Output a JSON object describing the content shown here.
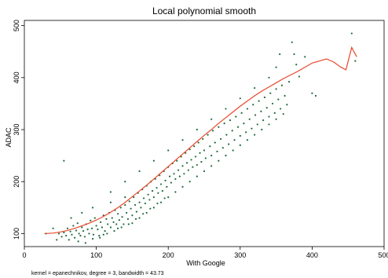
{
  "chart_data": {
    "type": "scatter",
    "title": "Local polynomial smooth",
    "xlabel": "With Google",
    "ylabel": "ADAC",
    "note": "kernel = epanechnikov, degree = 3, bandwidth = 43.73",
    "xlim": [
      0,
      500
    ],
    "ylim": [
      75,
      510
    ],
    "xticks": [
      0,
      100,
      200,
      300,
      400,
      500
    ],
    "yticks": [
      100,
      200,
      300,
      400,
      500
    ],
    "xtick_labels": [
      "0",
      "100",
      "200",
      "300",
      "400",
      "500"
    ],
    "ytick_labels": [
      "100",
      "200",
      "300",
      "400",
      "500"
    ],
    "grid": false,
    "series": [
      {
        "kind": "scatter",
        "color": "#1f6b3a",
        "points": [
          [
            48,
            100
          ],
          [
            52,
            94
          ],
          [
            55,
            102
          ],
          [
            58,
            96
          ],
          [
            60,
            110
          ],
          [
            62,
            88
          ],
          [
            64,
            104
          ],
          [
            66,
            98
          ],
          [
            68,
            115
          ],
          [
            70,
            92
          ],
          [
            72,
            106
          ],
          [
            74,
            120
          ],
          [
            76,
            100
          ],
          [
            78,
            96
          ],
          [
            80,
            112
          ],
          [
            82,
            105
          ],
          [
            84,
            94
          ],
          [
            86,
            118
          ],
          [
            88,
            108
          ],
          [
            90,
            100
          ],
          [
            92,
            125
          ],
          [
            94,
            110
          ],
          [
            96,
            98
          ],
          [
            98,
            130
          ],
          [
            100,
            115
          ],
          [
            102,
            108
          ],
          [
            104,
            96
          ],
          [
            106,
            122
          ],
          [
            108,
            112
          ],
          [
            110,
            135
          ],
          [
            112,
            105
          ],
          [
            114,
            128
          ],
          [
            116,
            118
          ],
          [
            118,
            140
          ],
          [
            120,
            112
          ],
          [
            122,
            130
          ],
          [
            124,
            122
          ],
          [
            126,
            145
          ],
          [
            128,
            118
          ],
          [
            130,
            138
          ],
          [
            132,
            126
          ],
          [
            134,
            150
          ],
          [
            136,
            132
          ],
          [
            138,
            118
          ],
          [
            140,
            155
          ],
          [
            142,
            140
          ],
          [
            144,
            128
          ],
          [
            146,
            162
          ],
          [
            148,
            148
          ],
          [
            150,
            135
          ],
          [
            152,
            170
          ],
          [
            154,
            155
          ],
          [
            156,
            142
          ],
          [
            158,
            178
          ],
          [
            160,
            160
          ],
          [
            162,
            150
          ],
          [
            164,
            185
          ],
          [
            166,
            168
          ],
          [
            168,
            158
          ],
          [
            170,
            192
          ],
          [
            172,
            175
          ],
          [
            174,
            165
          ],
          [
            176,
            200
          ],
          [
            178,
            182
          ],
          [
            180,
            170
          ],
          [
            182,
            205
          ],
          [
            184,
            188
          ],
          [
            186,
            178
          ],
          [
            188,
            212
          ],
          [
            190,
            195
          ],
          [
            192,
            182
          ],
          [
            194,
            220
          ],
          [
            196,
            202
          ],
          [
            198,
            190
          ],
          [
            200,
            228
          ],
          [
            202,
            210
          ],
          [
            204,
            198
          ],
          [
            206,
            235
          ],
          [
            208,
            215
          ],
          [
            210,
            205
          ],
          [
            212,
            240
          ],
          [
            214,
            222
          ],
          [
            216,
            210
          ],
          [
            218,
            248
          ],
          [
            220,
            230
          ],
          [
            222,
            215
          ],
          [
            224,
            255
          ],
          [
            226,
            236
          ],
          [
            228,
            222
          ],
          [
            230,
            262
          ],
          [
            232,
            242
          ],
          [
            234,
            228
          ],
          [
            236,
            268
          ],
          [
            238,
            248
          ],
          [
            240,
            232
          ],
          [
            242,
            275
          ],
          [
            244,
            255
          ],
          [
            246,
            238
          ],
          [
            248,
            282
          ],
          [
            250,
            260
          ],
          [
            252,
            245
          ],
          [
            255,
            290
          ],
          [
            258,
            268
          ],
          [
            260,
            250
          ],
          [
            262,
            298
          ],
          [
            265,
            275
          ],
          [
            268,
            258
          ],
          [
            270,
            305
          ],
          [
            273,
            282
          ],
          [
            276,
            265
          ],
          [
            278,
            312
          ],
          [
            281,
            290
          ],
          [
            284,
            272
          ],
          [
            286,
            318
          ],
          [
            289,
            298
          ],
          [
            292,
            280
          ],
          [
            294,
            325
          ],
          [
            297,
            305
          ],
          [
            300,
            288
          ],
          [
            302,
            332
          ],
          [
            305,
            312
          ],
          [
            308,
            295
          ],
          [
            310,
            340
          ],
          [
            313,
            320
          ],
          [
            316,
            302
          ],
          [
            318,
            348
          ],
          [
            321,
            328
          ],
          [
            324,
            310
          ],
          [
            326,
            355
          ],
          [
            329,
            335
          ],
          [
            332,
            318
          ],
          [
            334,
            362
          ],
          [
            337,
            342
          ],
          [
            340,
            325
          ],
          [
            342,
            370
          ],
          [
            345,
            350
          ],
          [
            348,
            332
          ],
          [
            350,
            378
          ],
          [
            353,
            358
          ],
          [
            356,
            340
          ],
          [
            358,
            385
          ],
          [
            362,
            365
          ],
          [
            365,
            348
          ],
          [
            368,
            392
          ],
          [
            372,
            468
          ],
          [
            375,
            445
          ],
          [
            378,
            425
          ],
          [
            382,
            402
          ],
          [
            390,
            440
          ],
          [
            400,
            370
          ],
          [
            405,
            365
          ],
          [
            455,
            485
          ],
          [
            460,
            432
          ],
          [
            30,
            100
          ],
          [
            40,
            110
          ],
          [
            45,
            88
          ],
          [
            55,
            240
          ],
          [
            80,
            140
          ],
          [
            95,
            150
          ],
          [
            110,
            98
          ],
          [
            120,
            160
          ],
          [
            130,
            110
          ],
          [
            140,
            170
          ],
          [
            150,
            120
          ],
          [
            160,
            130
          ],
          [
            170,
            140
          ],
          [
            180,
            150
          ],
          [
            190,
            160
          ],
          [
            200,
            170
          ],
          [
            210,
            180
          ],
          [
            220,
            190
          ],
          [
            230,
            200
          ],
          [
            240,
            210
          ],
          [
            250,
            220
          ],
          [
            260,
            230
          ],
          [
            270,
            240
          ],
          [
            280,
            250
          ],
          [
            290,
            260
          ],
          [
            300,
            270
          ],
          [
            310,
            280
          ],
          [
            320,
            290
          ],
          [
            330,
            300
          ],
          [
            340,
            310
          ],
          [
            350,
            320
          ],
          [
            360,
            330
          ],
          [
            120,
            180
          ],
          [
            140,
            200
          ],
          [
            160,
            220
          ],
          [
            180,
            240
          ],
          [
            200,
            260
          ],
          [
            220,
            280
          ],
          [
            240,
            300
          ],
          [
            260,
            320
          ],
          [
            280,
            340
          ],
          [
            300,
            360
          ],
          [
            320,
            380
          ],
          [
            340,
            400
          ],
          [
            350,
            420
          ],
          [
            355,
            445
          ],
          [
            65,
            130
          ],
          [
            75,
            85
          ],
          [
            85,
            82
          ],
          [
            95,
            90
          ],
          [
            105,
            92
          ],
          [
            115,
            100
          ],
          [
            125,
            105
          ],
          [
            135,
            112
          ],
          [
            145,
            118
          ],
          [
            155,
            128
          ],
          [
            165,
            138
          ],
          [
            175,
            148
          ],
          [
            185,
            158
          ],
          [
            195,
            168
          ]
        ]
      },
      {
        "kind": "line",
        "name": "Local polynomial smooth",
        "color": "#e8472a",
        "points": [
          [
            28,
            100
          ],
          [
            40,
            101
          ],
          [
            50,
            103
          ],
          [
            60,
            106
          ],
          [
            70,
            110
          ],
          [
            80,
            115
          ],
          [
            90,
            120
          ],
          [
            100,
            126
          ],
          [
            110,
            133
          ],
          [
            120,
            141
          ],
          [
            130,
            150
          ],
          [
            140,
            160
          ],
          [
            150,
            171
          ],
          [
            160,
            182
          ],
          [
            170,
            193
          ],
          [
            180,
            205
          ],
          [
            190,
            217
          ],
          [
            200,
            229
          ],
          [
            210,
            241
          ],
          [
            220,
            253
          ],
          [
            230,
            265
          ],
          [
            240,
            277
          ],
          [
            250,
            289
          ],
          [
            260,
            300
          ],
          [
            270,
            312
          ],
          [
            280,
            323
          ],
          [
            290,
            334
          ],
          [
            300,
            345
          ],
          [
            310,
            355
          ],
          [
            320,
            365
          ],
          [
            330,
            374
          ],
          [
            340,
            382
          ],
          [
            350,
            390
          ],
          [
            360,
            398
          ],
          [
            370,
            405
          ],
          [
            380,
            412
          ],
          [
            390,
            420
          ],
          [
            400,
            428
          ],
          [
            410,
            432
          ],
          [
            420,
            436
          ],
          [
            430,
            430
          ],
          [
            440,
            420
          ],
          [
            447,
            415
          ],
          [
            455,
            458
          ],
          [
            462,
            440
          ]
        ]
      }
    ]
  }
}
